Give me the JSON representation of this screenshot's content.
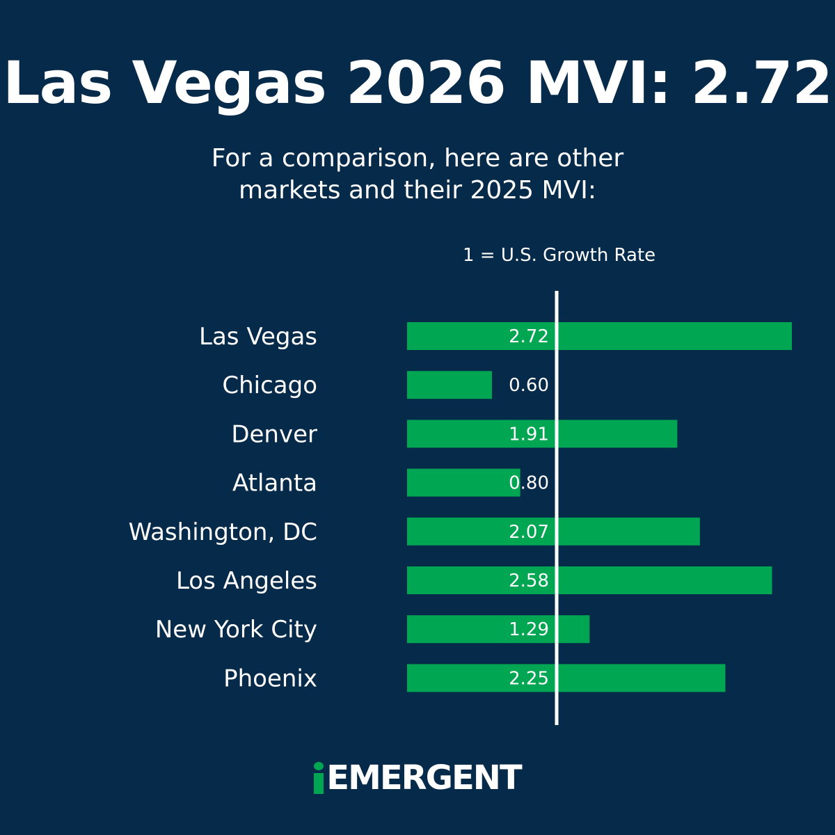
{
  "header": {
    "title": "Las Vegas 2026 MVI: 2.72",
    "subtitle_line1": "For a comparison, here are other",
    "subtitle_line2": "markets and their 2025 MVI:"
  },
  "brand": {
    "name": "EMERGENT"
  },
  "colors": {
    "background": "#062a4a",
    "bar": "#00a651",
    "reference_line": "#ffffff",
    "text": "#ffffff"
  },
  "chart_data": {
    "type": "bar",
    "orientation": "horizontal",
    "categories": [
      "Las Vegas",
      "Chicago",
      "Denver",
      "Atlanta",
      "Washington, DC",
      "Los Angeles",
      "New York City",
      "Phoenix"
    ],
    "values": [
      2.72,
      0.6,
      1.91,
      0.8,
      2.07,
      2.58,
      1.29,
      2.25
    ],
    "value_labels": [
      "2.72",
      "0.60",
      "1.91",
      "0.80",
      "2.07",
      "2.58",
      "1.29",
      "2.25"
    ],
    "reference_line": {
      "value": 1,
      "label": "1 = U.S. Growth Rate"
    },
    "xlim": [
      0,
      2.72
    ],
    "grid": false,
    "legend": "none"
  }
}
